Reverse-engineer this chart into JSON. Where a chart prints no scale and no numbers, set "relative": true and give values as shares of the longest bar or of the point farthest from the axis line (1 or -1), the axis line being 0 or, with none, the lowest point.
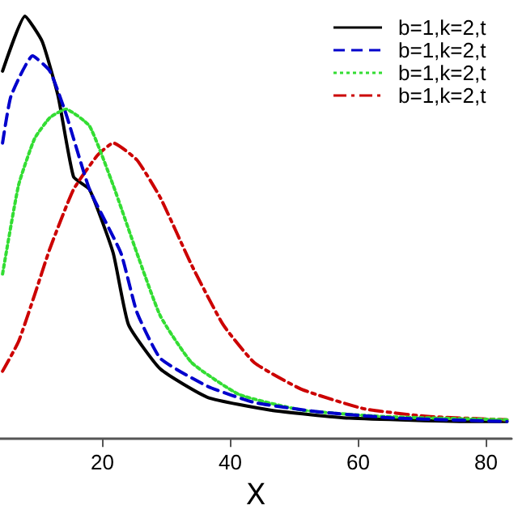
{
  "chart_data": {
    "type": "line",
    "xlabel": "X",
    "relative": true,
    "xlim": [
      4,
      84
    ],
    "xticks": [
      20,
      40,
      60,
      80
    ],
    "grid": false,
    "legend": "top right",
    "marker": "none",
    "series": [
      {
        "name": "b=1,k=2,t",
        "color": "#000000",
        "line_style": "solid",
        "x": [
          4.4,
          7.9,
          10.6,
          13.1,
          15.5,
          18,
          21.7,
          24.1,
          29.1,
          36.5,
          46.3,
          58.6,
          78.3,
          83.3
        ],
        "values": [
          0.87,
          1.0,
          0.94,
          0.81,
          0.62,
          0.59,
          0.44,
          0.27,
          0.165,
          0.098,
          0.068,
          0.049,
          0.041,
          0.041
        ]
      },
      {
        "name": "b=1,k=2,t",
        "color": "#0000cc",
        "line_style": "dashed",
        "x": [
          4.4,
          5.7,
          9.1,
          11.8,
          14.3,
          18,
          22.9,
          25.4,
          29.1,
          36.5,
          43.8,
          53.7,
          66,
          83.3
        ],
        "values": [
          0.7,
          0.81,
          0.906,
          0.87,
          0.77,
          0.59,
          0.44,
          0.3,
          0.19,
          0.124,
          0.086,
          0.064,
          0.049,
          0.041
        ]
      },
      {
        "name": "b=1,k=2,t",
        "color": "#33dd33",
        "line_style": "dotted",
        "x": [
          4.4,
          6.9,
          9.4,
          11.8,
          14.3,
          18,
          21.7,
          25.4,
          29.1,
          34,
          41.4,
          51.2,
          63.5,
          83.3
        ],
        "values": [
          0.39,
          0.6,
          0.71,
          0.76,
          0.78,
          0.74,
          0.6,
          0.44,
          0.29,
          0.18,
          0.105,
          0.068,
          0.053,
          0.045
        ]
      },
      {
        "name": "b=1,k=2,t",
        "color": "#cc0000",
        "line_style": "dashdot",
        "x": [
          4.4,
          6.9,
          9.4,
          11.8,
          15.5,
          19.2,
          21.7,
          25.4,
          29.1,
          34,
          38.9,
          43.8,
          51.2,
          61,
          70.9,
          83.3
        ],
        "values": [
          0.16,
          0.23,
          0.34,
          0.45,
          0.59,
          0.67,
          0.7,
          0.66,
          0.57,
          0.41,
          0.27,
          0.18,
          0.117,
          0.071,
          0.053,
          0.045
        ]
      }
    ]
  }
}
